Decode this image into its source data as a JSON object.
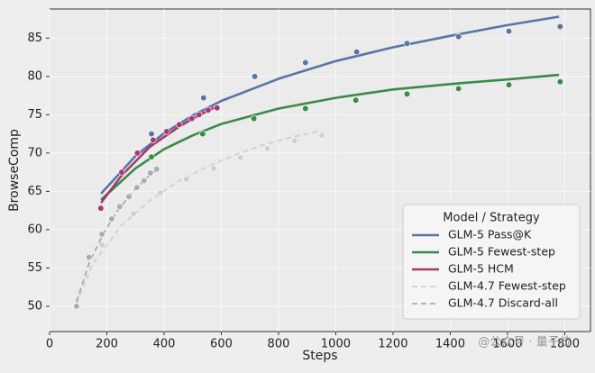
{
  "chart_data": {
    "type": "scatter-fit",
    "x_label": "Steps",
    "y_label": "BrowseComp",
    "xlim": [
      0,
      1890
    ],
    "ylim": [
      46.7,
      88.8
    ],
    "xticks": [
      0,
      200,
      400,
      600,
      800,
      1000,
      1200,
      1400,
      1600,
      1800
    ],
    "yticks": [
      50,
      55,
      60,
      65,
      70,
      75,
      80,
      85
    ],
    "grid": true,
    "legend_title": "Model / Strategy",
    "legend_position": "lower right",
    "watermark": "@公众号 · 量子位",
    "series": [
      {
        "name": "GLM-5 Pass@K",
        "color": "#5876a4",
        "dash": false,
        "x": [
          356,
          538,
          717,
          894,
          1073,
          1249,
          1429,
          1605,
          1784
        ],
        "values": [
          72.5,
          77.2,
          80.0,
          81.8,
          83.2,
          84.3,
          85.2,
          85.9,
          86.5
        ],
        "fit": {
          "x": [
            180,
            300,
            400,
            500,
            600,
            800,
            1000,
            1200,
            1400,
            1600,
            1780
          ],
          "values": [
            64.7,
            69.6,
            72.6,
            74.9,
            76.8,
            79.7,
            82.0,
            83.8,
            85.3,
            86.7,
            87.8
          ]
        }
      },
      {
        "name": "GLM-5 Fewest-step",
        "color": "#3a8a47",
        "dash": false,
        "x": [
          356,
          535,
          714,
          894,
          1070,
          1249,
          1429,
          1605,
          1784
        ],
        "values": [
          69.5,
          72.5,
          74.5,
          75.8,
          76.9,
          77.7,
          78.4,
          78.9,
          79.3
        ],
        "fit": {
          "x": [
            180,
            300,
            400,
            500,
            600,
            800,
            1000,
            1200,
            1400,
            1600,
            1780
          ],
          "values": [
            63.9,
            68.0,
            70.5,
            72.3,
            73.8,
            75.8,
            77.2,
            78.3,
            79.0,
            79.6,
            80.2
          ]
        }
      },
      {
        "name": "GLM-5 HCM",
        "color": "#a53a6d",
        "dash": false,
        "x": [
          179,
          252,
          307,
          362,
          409,
          453,
          497,
          522,
          554,
          585
        ],
        "values": [
          62.8,
          67.5,
          70.0,
          71.7,
          72.8,
          73.7,
          74.5,
          75.0,
          75.6,
          75.9
        ],
        "fit": {
          "x": [
            180,
            250,
            350,
            450,
            520,
            580
          ],
          "values": [
            63.5,
            67.0,
            70.8,
            73.4,
            74.9,
            76.0
          ]
        }
      },
      {
        "name": "GLM-4.7 Fewest-step",
        "color": "#cfcfcf",
        "dash": true,
        "x": [
          94,
          183,
          293,
          387,
          478,
          573,
          667,
          761,
          856,
          951
        ],
        "values": [
          50.0,
          58.0,
          62.1,
          64.8,
          66.6,
          68.0,
          69.4,
          70.6,
          71.6,
          72.3
        ],
        "fit": {
          "x": [
            94,
            150,
            250,
            350,
            450,
            550,
            650,
            750,
            850,
            950
          ],
          "values": [
            50.3,
            55.5,
            60.5,
            63.8,
            66.3,
            68.2,
            69.8,
            71.1,
            72.1,
            72.9
          ]
        }
      },
      {
        "name": "GLM-4.7 Discard-all",
        "color": "#ababab",
        "dash": true,
        "x": [
          94,
          138,
          183,
          217,
          245,
          277,
          305,
          330,
          352,
          374
        ],
        "values": [
          50.0,
          56.4,
          59.4,
          61.4,
          63.0,
          64.3,
          65.5,
          66.4,
          67.4,
          67.9
        ],
        "fit": {
          "x": [
            94,
            140,
            190,
            240,
            290,
            340,
            374
          ],
          "values": [
            50.6,
            55.8,
            59.6,
            62.6,
            64.9,
            66.8,
            67.8
          ]
        }
      }
    ]
  }
}
